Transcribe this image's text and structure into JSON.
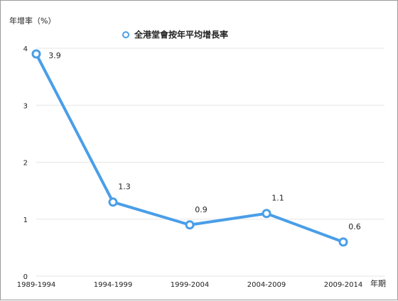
{
  "chart_data": {
    "type": "line",
    "ylabel": "年增率（%）",
    "xlabel": "年期",
    "categories": [
      "1989-1994",
      "1994-1999",
      "1999-2004",
      "2004-2009",
      "2009-2014"
    ],
    "series": [
      {
        "name": "全港堂會按年平均增長率",
        "values": [
          3.9,
          1.3,
          0.9,
          1.1,
          0.6
        ],
        "labels": [
          "3.9",
          "1.3",
          "0.9",
          "1.1",
          "0.6"
        ],
        "color": "#4a9ee8"
      }
    ],
    "ylim": [
      0,
      4
    ],
    "yticks": [
      "0",
      "1",
      "2",
      "3",
      "4"
    ],
    "grid": true,
    "legend": "top-center"
  }
}
